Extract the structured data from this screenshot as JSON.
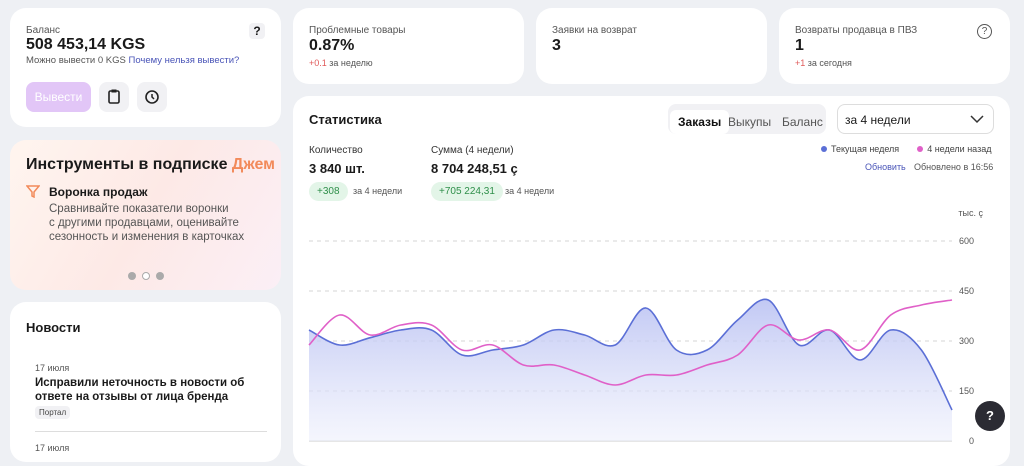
{
  "help_icon": "?",
  "balance": {
    "label": "Баланс",
    "amount": "508 453,14 KGS",
    "note": "Можно вывести 0 KGS",
    "link": "Почему нельзя вывести?",
    "button": "Вывести"
  },
  "problems": {
    "title": "Проблемные товары",
    "value": "0.87%",
    "delta": "+0.1",
    "delta_note": "за неделю"
  },
  "returns": {
    "title": "Заявки на возврат",
    "value": "3"
  },
  "pvz": {
    "title": "Возвраты продавца в ПВЗ",
    "value": "1",
    "delta": "+1",
    "delta_note": "за сегодня"
  },
  "subscription": {
    "title": "Инструменты в подписке",
    "title_accent": "Джем",
    "item_title": "Воронка продаж",
    "item_text": [
      "Сравнивайте показатели воронки",
      "с другими продавцами, оценивайте",
      "сезонность и изменения в карточках"
    ]
  },
  "news": {
    "title": "Новости",
    "items": [
      {
        "date": "17 июля",
        "title": [
          "Исправили неточность в новости об",
          "ответе на отзывы от лица бренда"
        ],
        "tag": "Портал"
      },
      {
        "date": "17 июля"
      }
    ]
  },
  "stats": {
    "title": "Статистика",
    "tabs": [
      "Заказы",
      "Выкупы",
      "Баланс"
    ],
    "period": "за 4 недели",
    "quantity_label": "Количество",
    "quantity": "3 840 шт.",
    "quantity_delta": "+308",
    "quantity_delta_note": "за 4 недели",
    "sum_label": "Сумма (4 недели)",
    "sum": "8 704 248,51 ç",
    "sum_delta": "+705 224,31",
    "sum_delta_note": "за 4 недели",
    "refresh": "Обновить",
    "updated": "Обновлено в 16:56"
  },
  "chart_data": {
    "type": "line",
    "y_label": "тыс. ç",
    "categories": [
      null,
      null,
      null,
      null,
      null,
      null,
      null,
      null,
      null,
      null,
      null,
      null,
      null,
      null,
      null,
      null,
      null,
      null,
      null,
      null,
      null,
      null
    ],
    "series": [
      {
        "name": "Текущая неделя",
        "color": "#5b6fd6",
        "values": [
          333,
          288,
          310,
          333,
          333,
          258,
          273,
          288,
          333,
          318,
          288,
          399,
          273,
          273,
          363,
          423,
          288,
          333,
          243,
          333,
          273,
          93
        ]
      },
      {
        "name": "4 недели назад",
        "color": "#e060c8",
        "values": [
          288,
          378,
          318,
          348,
          348,
          273,
          288,
          228,
          228,
          198,
          168,
          198,
          198,
          228,
          258,
          348,
          303,
          333,
          273,
          378,
          408,
          423
        ]
      }
    ],
    "ylim": [
      0,
      600
    ],
    "yticks": [
      0,
      150,
      300,
      450,
      600
    ],
    "grid": true
  }
}
